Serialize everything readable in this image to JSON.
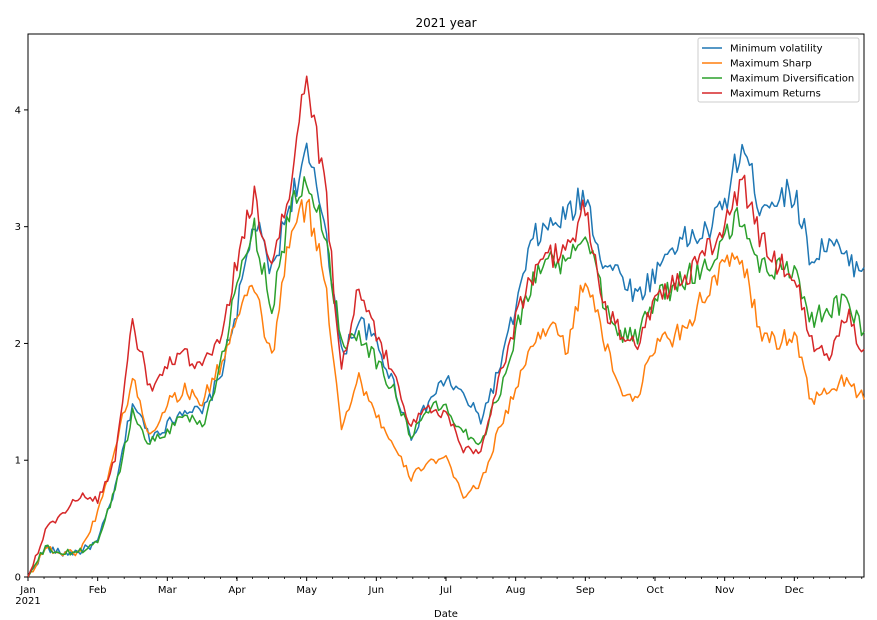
{
  "chart_data": {
    "type": "line",
    "title": "2021 year",
    "xlabel": "Date",
    "ylabel": "",
    "ylim": [
      0,
      4.65
    ],
    "y_ticks": [
      0,
      1,
      2,
      3,
      4
    ],
    "x_tick_labels": [
      {
        "month": 0,
        "label": "Jan",
        "sub": "2021"
      },
      {
        "month": 1,
        "label": "Feb"
      },
      {
        "month": 2,
        "label": "Mar"
      },
      {
        "month": 3,
        "label": "Apr"
      },
      {
        "month": 4,
        "label": "May"
      },
      {
        "month": 5,
        "label": "Jun"
      },
      {
        "month": 6,
        "label": "Jul"
      },
      {
        "month": 7,
        "label": "Aug"
      },
      {
        "month": 8,
        "label": "Sep"
      },
      {
        "month": 9,
        "label": "Oct"
      },
      {
        "month": 10,
        "label": "Nov"
      },
      {
        "month": 11,
        "label": "Dec"
      }
    ],
    "x_unit": "month of 2021 (0 = Jan 1, 12 = Dec 31)",
    "xlim": [
      0,
      12
    ],
    "legend_position": "top-right",
    "grid": false,
    "x": [
      0.0,
      0.25,
      0.5,
      0.75,
      1.0,
      1.25,
      1.5,
      1.75,
      2.0,
      2.25,
      2.5,
      2.75,
      3.0,
      3.25,
      3.5,
      3.75,
      4.0,
      4.25,
      4.5,
      4.75,
      5.0,
      5.25,
      5.5,
      5.75,
      6.0,
      6.25,
      6.5,
      6.75,
      7.0,
      7.25,
      7.5,
      7.75,
      8.0,
      8.25,
      8.5,
      8.75,
      9.0,
      9.25,
      9.5,
      9.75,
      10.0,
      10.25,
      10.5,
      10.75,
      11.0,
      11.25,
      11.5,
      11.75,
      12.0
    ],
    "series": [
      {
        "name": "Minimum volatility",
        "color": "#1f77b4",
        "values": [
          0.0,
          0.25,
          0.2,
          0.22,
          0.3,
          0.75,
          1.5,
          1.2,
          1.3,
          1.45,
          1.4,
          1.7,
          2.3,
          3.05,
          2.6,
          3.2,
          3.6,
          3.1,
          1.9,
          2.2,
          2.0,
          1.65,
          1.2,
          1.5,
          1.7,
          1.55,
          1.35,
          1.75,
          2.3,
          2.9,
          3.0,
          3.1,
          3.28,
          2.7,
          2.6,
          2.4,
          2.6,
          2.85,
          2.9,
          2.95,
          3.2,
          3.7,
          3.2,
          3.25,
          3.3,
          2.7,
          2.9,
          2.7,
          2.65
        ]
      },
      {
        "name": "Maximum Sharp",
        "color": "#ff7f0e",
        "values": [
          0.0,
          0.25,
          0.2,
          0.22,
          0.55,
          1.1,
          1.7,
          1.2,
          1.5,
          1.6,
          1.5,
          1.8,
          2.2,
          2.5,
          1.85,
          2.9,
          3.2,
          2.6,
          1.3,
          1.7,
          1.4,
          1.1,
          0.85,
          1.0,
          1.0,
          0.7,
          0.8,
          1.25,
          1.6,
          2.0,
          2.2,
          1.95,
          2.6,
          2.05,
          1.6,
          1.55,
          2.0,
          2.05,
          2.2,
          2.45,
          2.65,
          2.75,
          2.1,
          2.0,
          2.1,
          1.5,
          1.6,
          1.7,
          1.52
        ]
      },
      {
        "name": "Maximum Diversification",
        "color": "#2ca02c",
        "values": [
          0.0,
          0.25,
          0.2,
          0.22,
          0.3,
          0.75,
          1.4,
          1.15,
          1.25,
          1.4,
          1.3,
          1.75,
          2.5,
          3.0,
          2.3,
          3.1,
          3.4,
          3.0,
          2.0,
          2.1,
          1.85,
          1.6,
          1.2,
          1.45,
          1.45,
          1.25,
          1.15,
          1.55,
          2.1,
          2.55,
          2.75,
          2.65,
          3.0,
          2.4,
          2.1,
          2.05,
          2.4,
          2.45,
          2.6,
          2.65,
          2.9,
          3.1,
          2.65,
          2.65,
          2.65,
          2.2,
          2.3,
          2.35,
          2.1
        ]
      },
      {
        "name": "Maximum Returns",
        "color": "#d62728",
        "values": [
          0.0,
          0.4,
          0.55,
          0.7,
          0.65,
          1.0,
          2.2,
          1.6,
          1.8,
          1.9,
          1.8,
          2.0,
          2.7,
          3.3,
          2.6,
          3.3,
          4.3,
          3.4,
          1.8,
          2.5,
          2.05,
          1.75,
          1.3,
          1.45,
          1.4,
          1.1,
          1.1,
          1.65,
          2.2,
          2.6,
          2.75,
          2.8,
          3.2,
          2.3,
          2.1,
          1.95,
          2.4,
          2.5,
          2.6,
          2.8,
          3.0,
          3.4,
          2.9,
          2.7,
          2.6,
          2.0,
          1.9,
          2.25,
          1.95
        ]
      }
    ]
  }
}
